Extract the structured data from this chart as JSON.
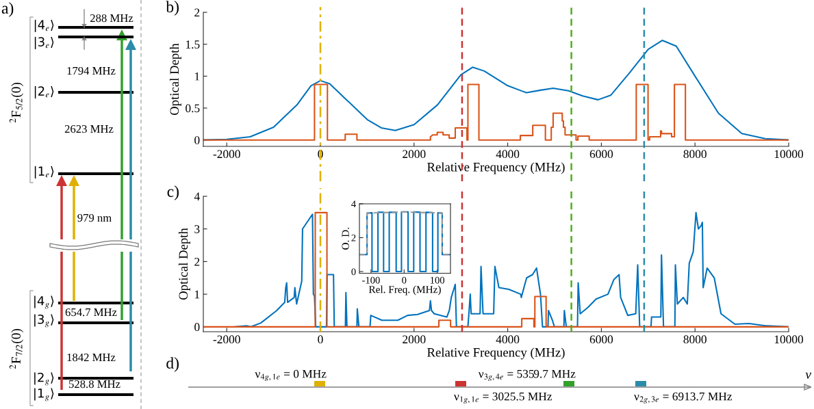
{
  "chart_data": [
    {
      "type": "other",
      "annotations": [
        "a)",
        "|4$_{e}$⟩",
        "|3$_{e}$⟩",
        "|2$_{e}$⟩",
        "|1$_{e}$⟩",
        "|4$_{g}$⟩",
        "|3$_{g}$⟩",
        "|2$_{g}$⟩",
        "|1$_{g}$⟩",
        "$^{2}$F$_{5/2}$(0)",
        "$^{2}$F$_{7/2}$(0)",
        "288 MHz",
        "1794 MHz",
        "2623 MHz",
        "979 nm",
        "654.7 MHz",
        "1842 MHz",
        "528.8 MHz"
      ],
      "colors": [
        "#cc3333",
        "#e0b000",
        "#33a02c",
        "#2a8ca8"
      ]
    },
    {
      "type": "line",
      "annotations": [
        "b)"
      ],
      "xlabel": "Relative Frequency (MHz)",
      "ylabel": "Optical Depth",
      "xlim": [
        -2500,
        10000
      ],
      "xticks": [
        -2000,
        0,
        2000,
        4000,
        6000,
        8000,
        10000
      ],
      "ylim": [
        -0.1,
        2
      ],
      "yticks": [
        0,
        0.5,
        1,
        1.5,
        2
      ],
      "series": [
        {
          "color": "#0072bd",
          "x": [
            -2500,
            -2000,
            -1500,
            -1000,
            -500,
            -200,
            0,
            200,
            500,
            1000,
            1300,
            1600,
            2000,
            2500,
            3000,
            3250,
            3500,
            4000,
            4400,
            4700,
            4970,
            5300,
            5600,
            5930,
            6200,
            6600,
            7000,
            7300,
            7600,
            8000,
            8500,
            9000,
            9500,
            10000
          ],
          "values": [
            0,
            0.01,
            0.05,
            0.2,
            0.55,
            0.85,
            0.93,
            0.88,
            0.67,
            0.32,
            0.19,
            0.15,
            0.24,
            0.55,
            1.02,
            1.14,
            1.08,
            0.85,
            0.74,
            0.78,
            0.81,
            0.77,
            0.69,
            0.63,
            0.7,
            1.05,
            1.42,
            1.56,
            1.47,
            1.0,
            0.42,
            0.1,
            0.02,
            0
          ]
        },
        {
          "color": "#d95319",
          "x": [
            -2500,
            -126,
            -126,
            150,
            150,
            530,
            530,
            780,
            780,
            2350,
            2350,
            2400,
            2495,
            2495,
            2620,
            2620,
            2750,
            2750,
            2880,
            2880,
            3130,
            3130,
            3150,
            3150,
            3385,
            3385,
            4270,
            4270,
            4535,
            4535,
            4805,
            4805,
            4930,
            4930,
            4970,
            4970,
            5165,
            5165,
            5190,
            5190,
            5225,
            5225,
            5460,
            5460,
            5500,
            5500,
            5740,
            5740,
            6745,
            6745,
            6997,
            6997,
            7030,
            7030,
            7265,
            7265,
            7285,
            7285,
            7500,
            7500,
            7560,
            7560,
            7795,
            7795,
            10000
          ],
          "values": [
            0,
            0,
            0.87,
            0.87,
            0,
            0,
            0.09,
            0.09,
            0,
            0,
            0.05,
            0.08,
            0.08,
            0.12,
            0.12,
            0.08,
            0.08,
            0.03,
            0.03,
            0.19,
            0.19,
            0,
            0,
            0.87,
            0.87,
            0,
            0,
            0.07,
            0.07,
            0.23,
            0.23,
            0,
            0,
            0.2,
            0.2,
            0.42,
            0.42,
            0.3,
            0.3,
            0.2,
            0.2,
            0.08,
            0.08,
            0,
            0,
            0.06,
            0.06,
            0,
            0,
            0.87,
            0.87,
            0,
            0,
            0.05,
            0.05,
            0.14,
            0.14,
            0.1,
            0.1,
            0.05,
            0.05,
            0.87,
            0.87,
            0,
            0
          ]
        }
      ],
      "ref_lines": [
        {
          "axis": "x",
          "value": 0,
          "color": "#e0b000",
          "line_style": "dashdot"
        },
        {
          "axis": "x",
          "value": 3025.5,
          "color": "#cc3333",
          "line_style": "dashed"
        },
        {
          "axis": "x",
          "value": 5359.7,
          "color": "#4daf1a",
          "line_style": "dashed"
        },
        {
          "axis": "x",
          "value": 6913.7,
          "color": "#2a8ca8",
          "line_style": "dashed"
        }
      ]
    },
    {
      "type": "line",
      "annotations": [
        "c)"
      ],
      "xlabel": "Relative Frequency (MHz)",
      "ylabel": "Optical Depth",
      "xlim": [
        -2500,
        10000
      ],
      "xticks": [
        -2000,
        0,
        2000,
        4000,
        6000,
        8000,
        10000
      ],
      "ylim": [
        -0.15,
        4
      ],
      "yticks": [
        0,
        1,
        2,
        3,
        4
      ],
      "series": [
        {
          "color": "#0072bd",
          "x": [
            -1821,
            -1567,
            -1482,
            -1270,
            -932,
            -762,
            -740,
            -720,
            -700,
            -560,
            -545,
            -508,
            -398,
            -381,
            -169,
            -150,
            -127,
            -100,
            130,
            144,
            280,
            296,
            534,
            545,
            567,
            780,
            788,
            822,
            1060,
            1076,
            1313,
            1652,
            1863,
            2075,
            2329,
            2350,
            2372,
            2431,
            2700,
            2753,
            2795,
            2880,
            2905,
            3150,
            3176,
            3200,
            3219,
            3410,
            3430,
            3473,
            3700,
            3727,
            3812,
            4023,
            4277,
            4290,
            4404,
            4531,
            4616,
            4700,
            4743,
            4860,
            4870,
            4955,
            4997,
            5200,
            5209,
            5251,
            5490,
            5505,
            5548,
            5717,
            5887,
            6141,
            6268,
            6378,
            6412,
            6564,
            6734,
            6776,
            6818,
            7060,
            7072,
            7270,
            7284,
            7327,
            7570,
            7581,
            7623,
            7750,
            7835,
            7877,
            7962,
            8021,
            8072,
            8131,
            8157,
            8174,
            8259,
            8411,
            8555,
            8852,
            9148,
            9529,
            10000
          ],
          "values": [
            0,
            0.03,
            0,
            0.12,
            0.5,
            0.75,
            1.2,
            1.35,
            0.75,
            0.9,
            1.2,
            0.7,
            1.4,
            3.0,
            3.45,
            1.0,
            0.95,
            0,
            0,
            1.6,
            1.6,
            0,
            0,
            1.05,
            0,
            0,
            0.55,
            0,
            0,
            0.35,
            0.2,
            0.2,
            0.35,
            0.38,
            0.5,
            0.8,
            0.5,
            0.4,
            0.3,
            0.5,
            0.9,
            1.3,
            0,
            0,
            0.5,
            1.0,
            0.4,
            0.4,
            1.85,
            0.4,
            0.4,
            1.85,
            1.2,
            1.15,
            1.0,
            0.9,
            1.5,
            1.6,
            1.8,
            1.0,
            0,
            0,
            0.5,
            0.2,
            0,
            0,
            0.5,
            0,
            0,
            1.35,
            0.4,
            0.6,
            0.85,
            1.0,
            1.45,
            1.6,
            0.9,
            0.35,
            0.4,
            1.9,
            0,
            0,
            0.3,
            0.3,
            2.2,
            0,
            0,
            1.9,
            0.7,
            0.9,
            0.7,
            1.95,
            2.3,
            3.5,
            3.0,
            3.1,
            3.2,
            1.2,
            1.8,
            1.5,
            0.4,
            0.08,
            0.1,
            0.03,
            0
          ]
        },
        {
          "color": "#d95319",
          "x": [
            -2500,
            -110,
            -110,
            140,
            140,
            2530,
            2530,
            2780,
            2780,
            4300,
            4300,
            4560,
            4560,
            4580,
            4580,
            4820,
            4820,
            10000
          ],
          "values": [
            0,
            0,
            3.5,
            3.5,
            0,
            0,
            0.2,
            0.2,
            0,
            0,
            0.25,
            0.25,
            0,
            0,
            0.93,
            0.93,
            0,
            0
          ]
        }
      ],
      "ref_lines": [
        {
          "axis": "x",
          "value": 0,
          "color": "#e0b000",
          "line_style": "dashdot"
        },
        {
          "axis": "x",
          "value": 3025.5,
          "color": "#cc3333",
          "line_style": "dashed"
        },
        {
          "axis": "x",
          "value": 5359.7,
          "color": "#4daf1a",
          "line_style": "dashed"
        },
        {
          "axis": "x",
          "value": 6913.7,
          "color": "#2a8ca8",
          "line_style": "dashed"
        }
      ]
    },
    {
      "type": "line",
      "xlabel": "Rel. Freq. (MHz)",
      "ylabel": "O. D.",
      "xlim": [
        -135,
        140
      ],
      "xticks": [
        -100,
        0,
        100
      ],
      "ylim": [
        -0.1,
        4
      ],
      "yticks": [
        0,
        2,
        4
      ],
      "series": [
        {
          "color": "#0072bd",
          "x": [
            -135,
            -112,
            -112,
            -97,
            -97,
            -79,
            -79,
            -62,
            -62,
            -45,
            -45,
            -24,
            -24,
            -8,
            -8,
            12,
            12,
            29,
            29,
            48,
            48,
            66,
            66,
            86,
            86,
            102,
            102,
            115,
            115,
            140
          ],
          "values": [
            1.0,
            1.0,
            3.45,
            3.47,
            0,
            0,
            3.5,
            3.5,
            0,
            0,
            3.5,
            3.5,
            0,
            0,
            3.52,
            3.52,
            0,
            0,
            3.52,
            3.5,
            0,
            0,
            3.5,
            3.48,
            0,
            0,
            3.47,
            3.45,
            1.0,
            1.0
          ]
        },
        {
          "color": "#999999",
          "line_style": "dashed",
          "x": [
            -135,
            -112,
            -112,
            0,
            115,
            115,
            140
          ],
          "values": [
            1.0,
            1.0,
            3.45,
            3.52,
            3.45,
            1.0,
            1.0
          ]
        }
      ]
    },
    {
      "type": "other",
      "annotations": [
        "d)",
        "ν$_{4g,1e}$ = 0 MHz",
        "ν$_{1g,1e}$ = 3025.5 MHz",
        "ν$_{3g,4e}$ = 5359.7 MHz",
        "ν$_{2g,3e}$ = 6913.7 MHz"
      ],
      "xlabel": "ν",
      "colors": [
        "#e0b000",
        "#cc3333",
        "#33a02c",
        "#2a8ca8"
      ]
    }
  ]
}
